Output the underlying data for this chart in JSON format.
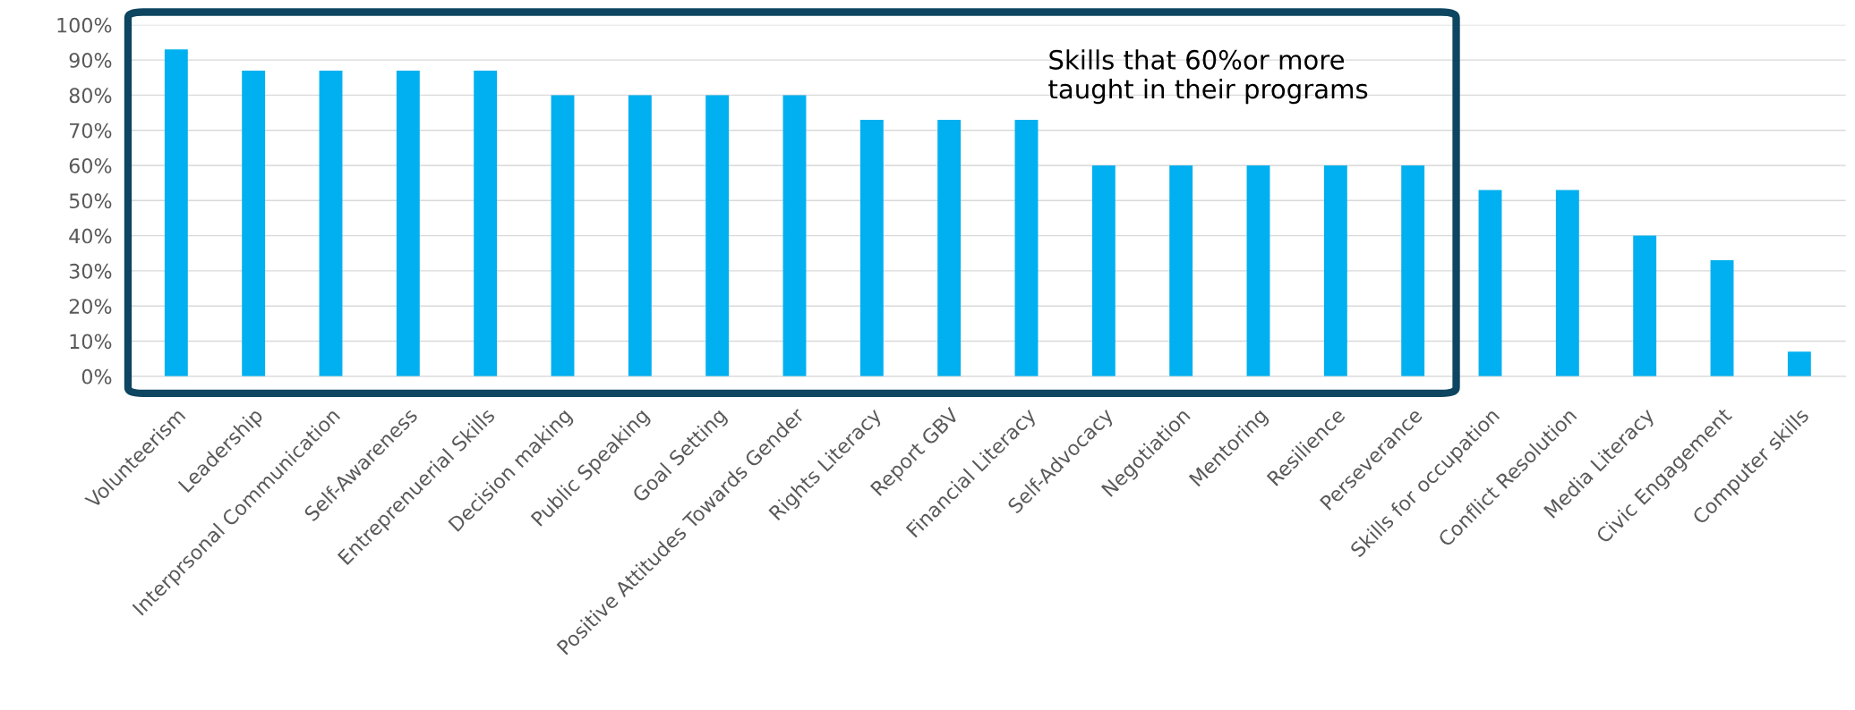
{
  "chart_data": {
    "type": "bar",
    "categories": [
      "Volunteerism",
      "Leadership",
      "Interprsonal Communication",
      "Self-Awareness",
      "Entreprenuerial Skills",
      "Decision making",
      "Public Speaking",
      "Goal Setting",
      "Positive Attitudes Towards Gender",
      "Rights Literacy",
      "Report GBV",
      "Financial Literacy",
      "Self-Advocacy",
      "Negotiation",
      "Mentoring",
      "Resilience",
      "Perseverance",
      "Skills for occupation",
      "Conflict Resolution",
      "Media Literacy",
      "Civic Engagement",
      "Computer skills"
    ],
    "values": [
      93,
      87,
      87,
      87,
      87,
      80,
      80,
      80,
      80,
      73,
      73,
      73,
      60,
      60,
      60,
      60,
      60,
      53,
      53,
      40,
      33,
      7
    ],
    "color": "#00b0f0",
    "ylim": [
      0,
      100
    ],
    "yticks": [
      {
        "value": 0,
        "label": "0%"
      },
      {
        "value": 10,
        "label": "10%"
      },
      {
        "value": 20,
        "label": "20%"
      },
      {
        "value": 30,
        "label": "30%"
      },
      {
        "value": 40,
        "label": "40%"
      },
      {
        "value": 50,
        "label": "50%"
      },
      {
        "value": 60,
        "label": "60%"
      },
      {
        "value": 70,
        "label": "70%"
      },
      {
        "value": 80,
        "label": "80%"
      },
      {
        "value": 90,
        "label": "90%"
      },
      {
        "value": 100,
        "label": "100%"
      }
    ],
    "grid": "y",
    "annotations": [
      "Skills that 60%or more\ntaught in their programs"
    ]
  }
}
